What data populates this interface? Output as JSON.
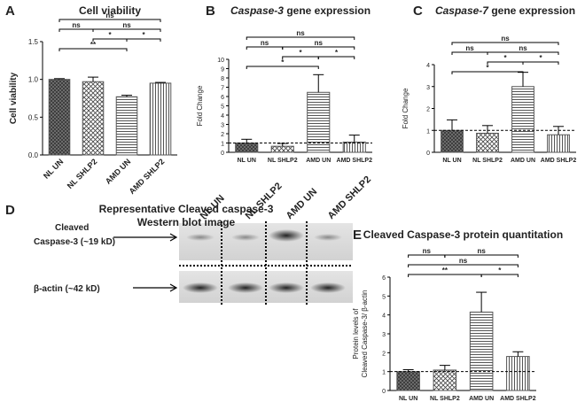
{
  "chart_data": [
    {
      "panel": "A",
      "type": "bar",
      "title": "Cell viability",
      "ylabel": [
        "Cell viability"
      ],
      "categories": [
        "NL UN",
        "NL SHLP2",
        "AMD UN",
        "AMD SHLP2"
      ],
      "values": [
        1.0,
        0.97,
        0.77,
        0.95
      ],
      "errors": [
        0.01,
        0.06,
        0.02,
        0.01
      ],
      "ylim": [
        0,
        1.5
      ],
      "yticks": [
        {
          "value": 0,
          "label": "0.0"
        },
        {
          "value": 0.5,
          "label": "0.5"
        },
        {
          "value": 1,
          "label": "1.0"
        },
        {
          "value": 1.5,
          "label": "1.5"
        }
      ],
      "patterns": [
        "crosshatch-dense",
        "crosshatch",
        "horizontal",
        "vertical"
      ],
      "color": "#555555",
      "rotate_labels": true,
      "comparisons": [
        {
          "groups": [
            "NL UN",
            "AMD SHLP2"
          ],
          "label": "ns"
        },
        {
          "groups": [
            "NL SHLP2",
            "AMD SHLP2"
          ],
          "label": "ns"
        },
        {
          "groups": [
            "NL UN",
            "NL SHLP2"
          ],
          "label": "ns"
        },
        {
          "groups": [
            "NL SHLP2",
            "AMD UN"
          ],
          "label": "*"
        },
        {
          "groups": [
            "NL UN",
            "AMD UN"
          ],
          "label": "**"
        },
        {
          "groups": [
            "AMD UN",
            "AMD SHLP2"
          ],
          "label": "*"
        }
      ]
    },
    {
      "panel": "B",
      "type": "bar",
      "title_italic": "Caspase-3",
      "title": "gene expression",
      "ylabel": [
        "Fold Change"
      ],
      "categories": [
        "NL UN",
        "NL SHLP2",
        "AMD UN",
        "AMD SHLP2"
      ],
      "values": [
        1.0,
        0.65,
        6.45,
        1.1
      ],
      "errors": [
        0.4,
        0.3,
        1.9,
        0.75
      ],
      "ylim": [
        0,
        10
      ],
      "yticks": [
        0,
        1,
        2,
        3,
        4,
        5,
        6,
        7,
        8,
        9,
        10
      ],
      "reference_line": 1,
      "patterns": [
        "crosshatch-dense",
        "crosshatch",
        "horizontal",
        "vertical"
      ],
      "color": "#555555",
      "comparisons": [
        {
          "groups": [
            "NL UN",
            "AMD SHLP2"
          ],
          "label": "ns"
        },
        {
          "groups": [
            "NL SHLP2",
            "AMD SHLP2"
          ],
          "label": "ns"
        },
        {
          "groups": [
            "NL SHLP2",
            "AMD UN"
          ],
          "label": "*"
        },
        {
          "groups": [
            "AMD UN",
            "AMD SHLP2"
          ],
          "label": "*"
        },
        {
          "groups": [
            "NL UN",
            "AMD UN"
          ],
          "label": "*"
        },
        {
          "groups": [
            "NL UN",
            "NL SHLP2"
          ],
          "label": "ns"
        }
      ]
    },
    {
      "panel": "C",
      "type": "bar",
      "title_italic": "Caspase-7",
      "title": "gene expression",
      "ylabel": [
        "Fold Change"
      ],
      "categories": [
        "NL UN",
        "NL SHLP2",
        "AMD UN",
        "AMD SHLP2"
      ],
      "values": [
        1.0,
        0.87,
        3.0,
        0.8
      ],
      "errors": [
        0.48,
        0.35,
        0.65,
        0.38
      ],
      "ylim": [
        0,
        4
      ],
      "yticks": [
        0,
        1,
        2,
        3,
        4
      ],
      "reference_line": 1,
      "patterns": [
        "crosshatch-dense",
        "crosshatch",
        "horizontal",
        "vertical"
      ],
      "color": "#555555",
      "comparisons": [
        {
          "groups": [
            "NL UN",
            "AMD SHLP2"
          ],
          "label": "ns"
        },
        {
          "groups": [
            "NL SHLP2",
            "AMD SHLP2"
          ],
          "label": "ns"
        },
        {
          "groups": [
            "NL SHLP2",
            "AMD UN"
          ],
          "label": "*"
        },
        {
          "groups": [
            "NL UN",
            "AMD UN"
          ],
          "label": "*"
        },
        {
          "groups": [
            "AMD UN",
            "AMD SHLP2"
          ],
          "label": "*"
        },
        {
          "groups": [
            "NL UN",
            "NL SHLP2"
          ],
          "label": "ns"
        }
      ]
    },
    {
      "panel": "E",
      "type": "bar",
      "title": "Cleaved Caspase-3 protein quantitation",
      "ylabel": [
        "Protein levels of",
        "Cleaved Caspase-3/ β-actin"
      ],
      "categories": [
        "NL UN",
        "NL SHLP2",
        "AMD UN",
        "AMD SHLP2"
      ],
      "values": [
        1.0,
        1.08,
        4.15,
        1.8
      ],
      "errors": [
        0.1,
        0.25,
        1.05,
        0.25
      ],
      "ylim": [
        0,
        6
      ],
      "yticks": [
        0,
        1,
        2,
        3,
        4,
        5,
        6
      ],
      "reference_line": 1,
      "patterns": [
        "crosshatch-dense",
        "crosshatch",
        "horizontal",
        "vertical"
      ],
      "color": "#555555",
      "comparisons": [
        {
          "groups": [
            "NL SHLP2",
            "AMD SHLP2"
          ],
          "label": "ns"
        },
        {
          "groups": [
            "NL UN",
            "AMD SHLP2"
          ],
          "label": "ns"
        },
        {
          "groups": [
            "NL UN",
            "AMD UN"
          ],
          "label": "**"
        },
        {
          "groups": [
            "AMD UN",
            "AMD SHLP2"
          ],
          "label": "*"
        },
        {
          "groups": [
            "NL UN",
            "NL SHLP2"
          ],
          "label": "ns"
        }
      ]
    }
  ],
  "blot": {
    "panel": "D",
    "title": [
      "Representative Cleaved caspase-3",
      "Western blot image"
    ],
    "lanes": [
      "NL UN",
      "NL SHLP2",
      "AMD UN",
      "AMD SHLP2"
    ],
    "rows": [
      [
        "Cleaved",
        "Caspase-3 (~19 kD)"
      ],
      [
        "β-actin  (~42 kD)"
      ]
    ]
  }
}
